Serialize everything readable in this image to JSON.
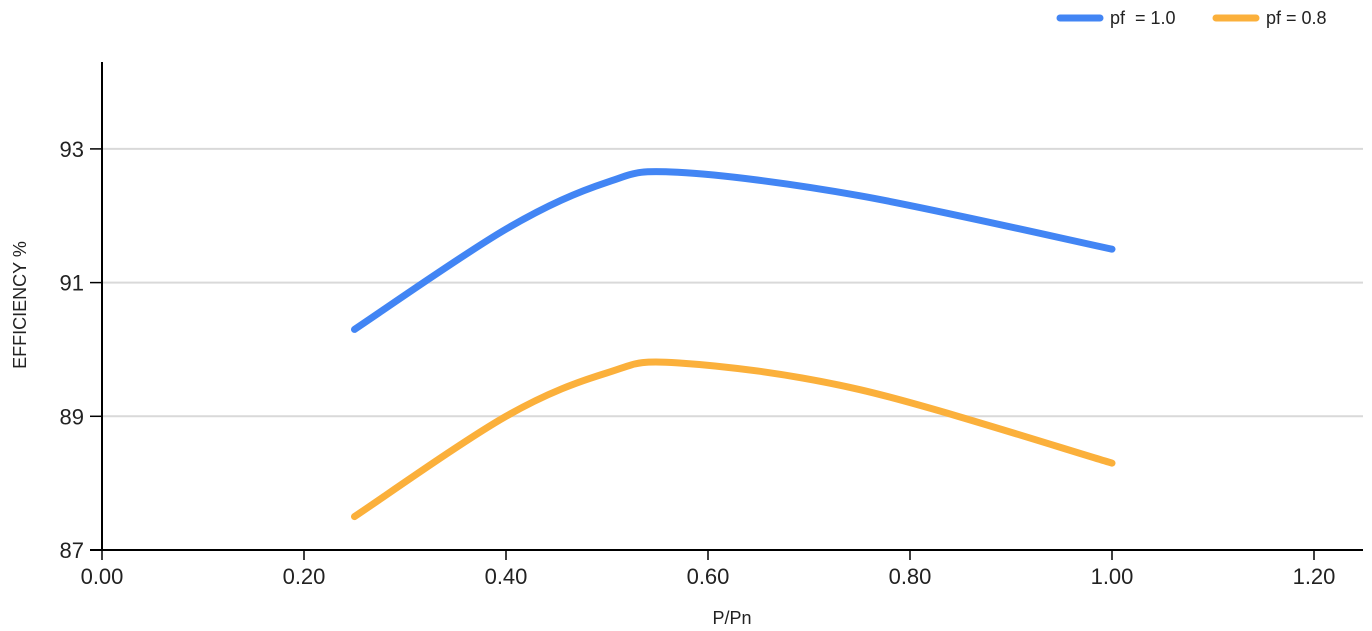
{
  "chart_data": {
    "type": "line",
    "title": "",
    "xlabel": "P/Pn",
    "ylabel": "EFFICIENCY %",
    "xlim": [
      0,
      1.2
    ],
    "ylim": [
      87,
      94.3
    ],
    "x_ticks": [
      "0.00",
      "0.20",
      "0.40",
      "0.60",
      "0.80",
      "1.00",
      "1.20"
    ],
    "y_ticks": [
      "87",
      "89",
      "91",
      "93"
    ],
    "grid": "horizontal",
    "legend": "top-right",
    "series": [
      {
        "name": "pf  = 1.0",
        "color": "#4285F4",
        "x": [
          0.25,
          0.4,
          0.5,
          0.57,
          0.75,
          1.0
        ],
        "y": [
          90.3,
          91.8,
          92.5,
          92.65,
          92.3,
          91.5
        ]
      },
      {
        "name": "pf = 0.8",
        "color": "#FBB03B",
        "x": [
          0.25,
          0.4,
          0.5,
          0.57,
          0.75,
          1.0
        ],
        "y": [
          87.5,
          89.0,
          89.65,
          89.8,
          89.4,
          88.3
        ]
      }
    ]
  }
}
